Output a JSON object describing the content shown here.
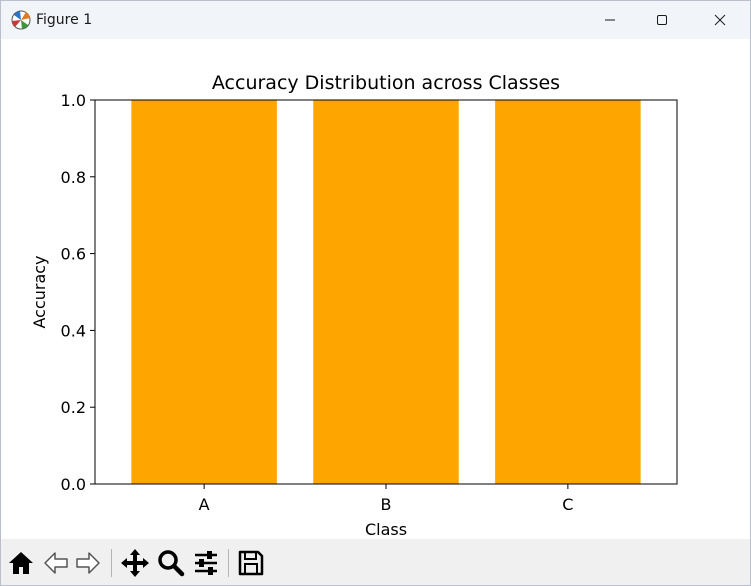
{
  "window": {
    "title": "Figure 1"
  },
  "chart_data": {
    "type": "bar",
    "title": "Accuracy Distribution across Classes",
    "xlabel": "Class",
    "ylabel": "Accuracy",
    "categories": [
      "A",
      "B",
      "C"
    ],
    "values": [
      1.0,
      1.0,
      1.0
    ],
    "ylim": [
      0.0,
      1.0
    ],
    "yticks": [
      "0.0",
      "0.2",
      "0.4",
      "0.6",
      "0.8",
      "1.0"
    ],
    "bar_color": "#ffa500",
    "grid": false,
    "legend": "none"
  },
  "toolbar": {
    "tools": [
      "home-icon",
      "back-icon",
      "forward-icon",
      "pan-icon",
      "zoom-icon",
      "configure-subplots-icon",
      "save-icon"
    ]
  }
}
